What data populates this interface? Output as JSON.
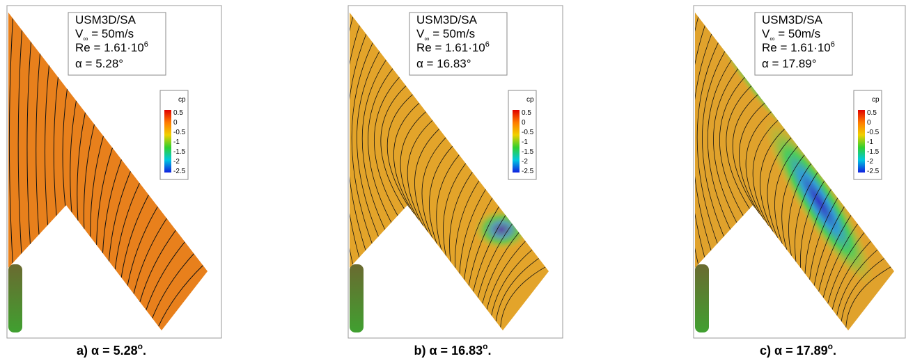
{
  "panels": [
    {
      "model": "USM3D/SA",
      "velocity": {
        "symbol": "V",
        "subscript": "∞",
        "text": " = 50m/s"
      },
      "reynolds": {
        "text": "Re = 1.61·10",
        "exponent": "6"
      },
      "alpha": "α = 5.28°",
      "colorbar": {
        "title": "cp",
        "ticks": [
          "0.5",
          "0",
          "-0.5",
          "-1",
          "-1.5",
          "-2",
          "-2.5"
        ]
      },
      "caption": {
        "text": "a) α = 5.28",
        "superscript": "o",
        "end": "."
      }
    },
    {
      "model": "USM3D/SA",
      "velocity": {
        "symbol": "V",
        "subscript": "∞",
        "text": " = 50m/s"
      },
      "reynolds": {
        "text": "Re = 1.61·10",
        "exponent": "6"
      },
      "alpha": "α = 16.83°",
      "colorbar": {
        "title": "cp",
        "ticks": [
          "0.5",
          "0",
          "-0.5",
          "-1",
          "-1.5",
          "-2",
          "-2.5"
        ]
      },
      "caption": {
        "text": "b) α = 16.83",
        "superscript": "o",
        "end": "."
      }
    },
    {
      "model": "USM3D/SA",
      "velocity": {
        "symbol": "V",
        "subscript": "∞",
        "text": " = 50m/s"
      },
      "reynolds": {
        "text": "Re = 1.61·10",
        "exponent": "6"
      },
      "alpha": "α = 17.89°",
      "colorbar": {
        "title": "cp",
        "ticks": [
          "0.5",
          "0",
          "-0.5",
          "-1",
          "-1.5",
          "-2",
          "-2.5"
        ]
      },
      "caption": {
        "text": "c) α = 17.89",
        "superscript": "o",
        "end": "."
      }
    }
  ]
}
